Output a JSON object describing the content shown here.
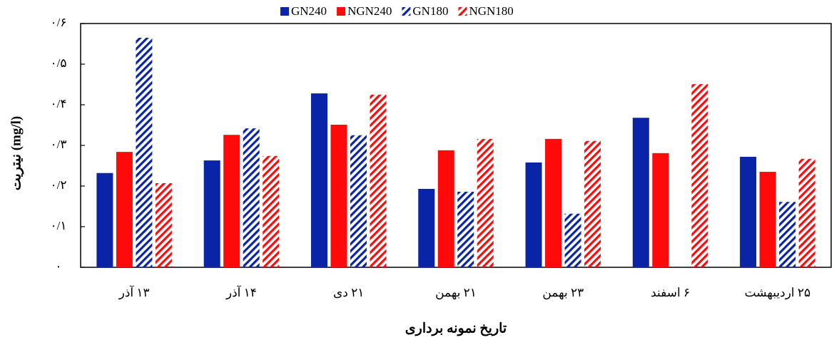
{
  "chart_data": {
    "type": "bar",
    "x_label": "تاریخ نمونه برداری",
    "y_label": "نیتریت (mg/l)",
    "categories": [
      "۱۳ آذر",
      "۱۴ آذر",
      "۲۱ دی",
      "۲۱ بهمن",
      "۲۳ بهمن",
      "۶ اسفند",
      "۲۵ اردیبهشت"
    ],
    "series": [
      {
        "name": "GN240",
        "color": "#0a24a8",
        "hatch": false,
        "values": [
          0.232,
          0.263,
          0.428,
          0.193,
          0.258,
          0.368,
          0.272
        ]
      },
      {
        "name": "NGN240",
        "color": "#ff0a0a",
        "hatch": false,
        "values": [
          0.284,
          0.326,
          0.351,
          0.288,
          0.316,
          0.281,
          0.235
        ]
      },
      {
        "name": "GN180",
        "color": "#0a24a8",
        "hatch": true,
        "values": [
          0.565,
          0.342,
          0.325,
          0.186,
          0.132,
          null,
          0.161
        ]
      },
      {
        "name": "NGN180",
        "color": "#ff0a0a",
        "hatch": true,
        "values": [
          0.207,
          0.274,
          0.425,
          0.316,
          0.311,
          0.451,
          0.267
        ]
      }
    ],
    "ylim": [
      0,
      0.6
    ],
    "yticks": [
      {
        "value": 0,
        "label": "۰"
      },
      {
        "value": 0.1,
        "label": "۰/۱"
      },
      {
        "value": 0.2,
        "label": "۰/۲"
      },
      {
        "value": 0.3,
        "label": "۰/۳"
      },
      {
        "value": 0.4,
        "label": "۰/۴"
      },
      {
        "value": 0.5,
        "label": "۰/۵"
      },
      {
        "value": 0.6,
        "label": "۰/۶"
      }
    ],
    "legend": "top"
  }
}
